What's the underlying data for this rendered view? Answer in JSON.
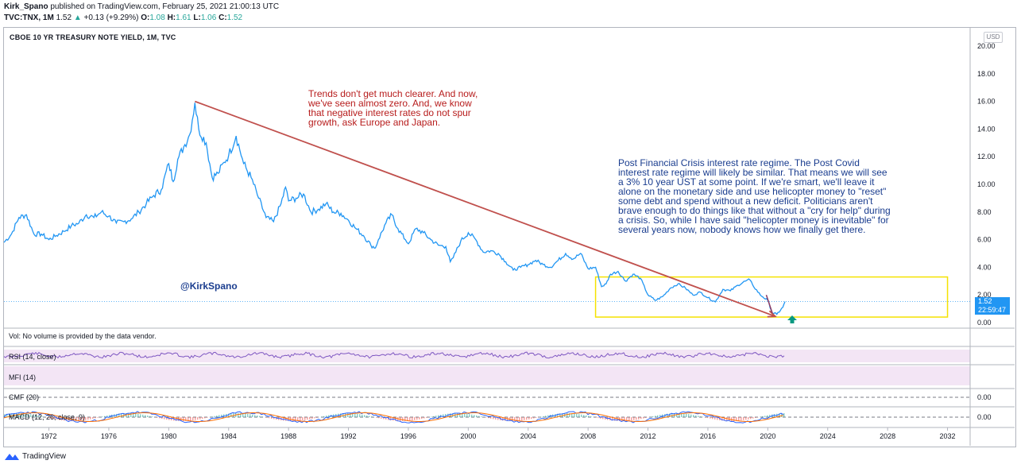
{
  "header": {
    "user": "Kirk_Spano",
    "published": "published on TradingView.com, February 25, 2021 21:00:13 UTC",
    "symbol": "TVC:TNX, 1M",
    "last": "1.52",
    "change": "+0.13 (+9.29%)",
    "o_label": "O:",
    "o": "1.08",
    "h_label": "H:",
    "h": "1.61",
    "l_label": "L:",
    "l": "1.06",
    "c_label": "C:",
    "c": "1.52"
  },
  "main_title": "CBOE 10 YR TREASURY NOTE YIELD, 1M, TVC",
  "currency_button": "USD",
  "annotations": {
    "red_note": "Trends don't get much clearer. And now, we've seen almost zero. And, we know that negative interest rates do not spur growth, ask Europe and Japan.",
    "blue_note": "Post Financial Crisis interest rate regime. The Post Covid interest rate regime will likely be similar. That means we will see a 3% 10 year UST at some point. If we're smart, we'll leave it alone on the monetary side and use helicopter money to \"reset\" some debt and spend without a new deficit. Politicians aren't brave enough to do things like that without a \"cry for help\" during a crisis. So, while I have said \"helicopter money is inevitable\"  for several years now, nobody knows how we finally get there.",
    "handle": "@KirkSpano"
  },
  "price_tag": {
    "price": "1.52",
    "countdown": "22:59:47"
  },
  "panes": {
    "volume": "Vol: No volume is provided by the data vendor.",
    "rsi": "RSI (14, close)",
    "mfi": "MFI (14)",
    "cmf": "CMF (20)",
    "macd": "MACD (12, 26, close, 9)",
    "cmf_zero": "0.00",
    "macd_zero": "0.00"
  },
  "footer": {
    "brand": "TradingView"
  },
  "colors": {
    "line": "#2196f3",
    "trend": "#c0504d",
    "box": "#f5e200",
    "rsi": "#7e57c2",
    "up_arrow": "#089981"
  },
  "chart_data": {
    "type": "line",
    "title": "CBOE 10 YR TREASURY NOTE YIELD, 1M, TVC",
    "ylim": [
      0,
      21
    ],
    "y_ticks": [
      "0.00",
      "2.00",
      "4.00",
      "6.00",
      "8.00",
      "10.00",
      "12.00",
      "14.00",
      "16.00",
      "18.00",
      "20.00"
    ],
    "x_ticks": [
      "1972",
      "1976",
      "1980",
      "1984",
      "1988",
      "1992",
      "1996",
      "2000",
      "2004",
      "2008",
      "2012",
      "2016",
      "2020",
      "2024",
      "2028",
      "2032"
    ],
    "series": [
      {
        "x": [
          1969.0,
          1969.5,
          1970.0,
          1970.5,
          1971.0,
          1971.5,
          1972.0,
          1972.5,
          1973.0,
          1973.5,
          1974.0,
          1974.5,
          1975.0,
          1975.5,
          1976.0,
          1976.5,
          1977.0,
          1977.5,
          1978.0,
          1978.5,
          1979.0,
          1979.5,
          1980.0,
          1980.3,
          1980.6,
          1981.0,
          1981.4,
          1981.75,
          1982.0,
          1982.5,
          1982.9,
          1983.3,
          1983.7,
          1984.0,
          1984.5,
          1985.0,
          1985.5,
          1986.0,
          1986.5,
          1987.0,
          1987.5,
          1987.8,
          1988.0,
          1988.5,
          1989.0,
          1989.5,
          1990.0,
          1990.5,
          1991.0,
          1991.5,
          1992.0,
          1992.5,
          1993.0,
          1993.5,
          1993.8,
          1994.0,
          1994.5,
          1994.9,
          1995.3,
          1995.8,
          1996.0,
          1996.5,
          1997.0,
          1997.5,
          1998.0,
          1998.5,
          1998.8,
          1999.0,
          1999.5,
          2000.0,
          2000.5,
          2001.0,
          2001.5,
          2002.0,
          2002.5,
          2003.0,
          2003.5,
          2004.0,
          2004.5,
          2005.0,
          2005.5,
          2006.0,
          2006.5,
          2007.0,
          2007.5,
          2008.0,
          2008.5,
          2008.9,
          2009.2,
          2009.5,
          2010.0,
          2010.5,
          2011.0,
          2011.5,
          2012.0,
          2012.5,
          2013.0,
          2013.5,
          2014.0,
          2014.5,
          2015.0,
          2015.5,
          2016.0,
          2016.5,
          2017.0,
          2017.5,
          2018.0,
          2018.5,
          2018.8,
          2019.0,
          2019.5,
          2020.0,
          2020.3,
          2020.6,
          2021.0,
          2021.15
        ],
        "y": [
          5.8,
          6.4,
          7.6,
          7.8,
          6.4,
          6.4,
          6.0,
          6.3,
          6.6,
          7.0,
          7.2,
          7.8,
          7.6,
          8.0,
          7.7,
          7.2,
          7.3,
          7.5,
          8.0,
          8.6,
          9.2,
          9.6,
          11.5,
          10.2,
          11.8,
          12.7,
          13.6,
          15.9,
          14.0,
          13.0,
          10.5,
          10.8,
          11.6,
          12.1,
          13.5,
          11.5,
          10.5,
          9.0,
          7.6,
          7.3,
          8.6,
          9.8,
          8.8,
          9.0,
          9.3,
          8.0,
          8.2,
          8.6,
          8.0,
          7.9,
          7.4,
          6.8,
          6.3,
          5.6,
          5.4,
          6.0,
          7.2,
          7.8,
          6.8,
          6.0,
          5.7,
          6.8,
          6.5,
          6.0,
          5.6,
          5.5,
          4.4,
          4.7,
          5.9,
          6.5,
          6.0,
          5.1,
          5.2,
          5.0,
          4.4,
          3.8,
          4.0,
          4.2,
          4.5,
          4.2,
          4.0,
          4.5,
          5.0,
          4.6,
          5.0,
          3.9,
          4.0,
          2.6,
          2.8,
          3.5,
          3.7,
          3.0,
          3.5,
          3.2,
          2.0,
          1.6,
          1.9,
          2.5,
          2.8,
          2.5,
          2.0,
          2.2,
          1.8,
          1.5,
          2.4,
          2.3,
          2.7,
          3.0,
          3.1,
          2.7,
          2.0,
          1.6,
          0.7,
          0.6,
          1.1,
          1.52
        ]
      }
    ],
    "annotation_lines": [
      {
        "name": "downtrend",
        "x": [
          1981.75,
          2020.5
        ],
        "y": [
          16.0,
          0.45
        ]
      }
    ],
    "highlight_box": {
      "x": [
        2008.5,
        2032.0
      ],
      "y": [
        0.4,
        3.3
      ]
    },
    "last_value": 1.52
  }
}
